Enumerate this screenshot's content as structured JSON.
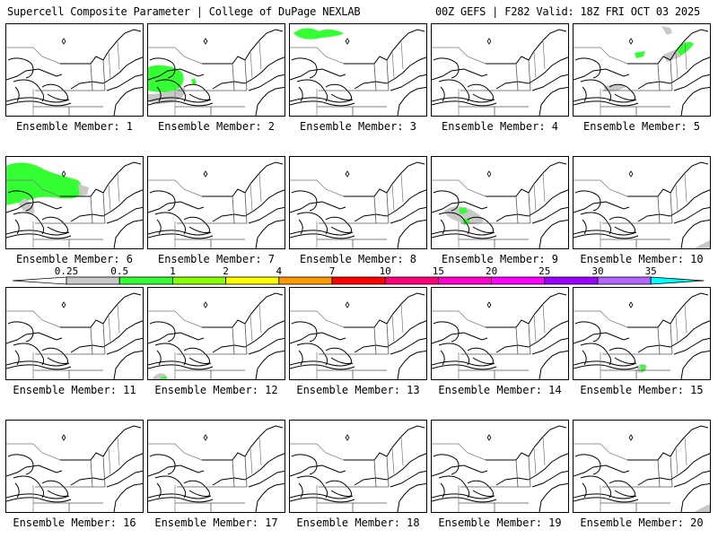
{
  "header": {
    "left": "Supercell Composite Parameter | College of DuPage NEXLAB",
    "right": "00Z GEFS | F282 Valid: 18Z FRI OCT 03 2025"
  },
  "legend": {
    "ticks": [
      "0.25",
      "0.5",
      "1",
      "2",
      "4",
      "7",
      "10",
      "15",
      "20",
      "25",
      "30",
      "35"
    ],
    "colors": [
      "#c8c8c8",
      "#33ff33",
      "#88ff00",
      "#ffff00",
      "#ff9900",
      "#ff0000",
      "#ff0077",
      "#ff00cc",
      "#ff00ff",
      "#9900ff",
      "#b366ff",
      "#00ffff"
    ]
  },
  "members": [
    {
      "label": "Ensemble Member: 1",
      "fill": "none"
    },
    {
      "label": "Ensemble Member: 2",
      "fill": "west-lakes-green"
    },
    {
      "label": "Ensemble Member: 3",
      "fill": "north-green"
    },
    {
      "label": "Ensemble Member: 4",
      "fill": "none"
    },
    {
      "label": "Ensemble Member: 5",
      "fill": "northeast-green-gray"
    },
    {
      "label": "Ensemble Member: 6",
      "fill": "west-large-green"
    },
    {
      "label": "Ensemble Member: 7",
      "fill": "none"
    },
    {
      "label": "Ensemble Member: 8",
      "fill": "none"
    },
    {
      "label": "Ensemble Member: 9",
      "fill": "ohio-green"
    },
    {
      "label": "Ensemble Member: 10",
      "fill": "corner-gray"
    },
    {
      "label": "Ensemble Member: 11",
      "fill": "none"
    },
    {
      "label": "Ensemble Member: 12",
      "fill": "south-green"
    },
    {
      "label": "Ensemble Member: 13",
      "fill": "none"
    },
    {
      "label": "Ensemble Member: 14",
      "fill": "none"
    },
    {
      "label": "Ensemble Member: 15",
      "fill": "coast-green"
    },
    {
      "label": "Ensemble Member: 16",
      "fill": "none"
    },
    {
      "label": "Ensemble Member: 17",
      "fill": "none"
    },
    {
      "label": "Ensemble Member: 18",
      "fill": "none"
    },
    {
      "label": "Ensemble Member: 19",
      "fill": "none"
    },
    {
      "label": "Ensemble Member: 20",
      "fill": "corner-gray"
    }
  ]
}
